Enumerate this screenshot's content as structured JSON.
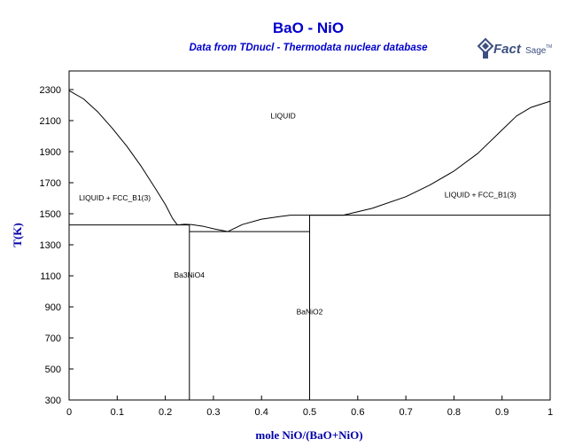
{
  "chart_data": {
    "type": "line",
    "title": "BaO - NiO",
    "subtitle": "Data from TDnucl - Thermodata nuclear database",
    "xlabel": "mole NiO/(BaO+NiO)",
    "ylabel": "T(K)",
    "xlim": [
      0,
      1
    ],
    "ylim": [
      300,
      2420
    ],
    "x_ticks": [
      0,
      0.1,
      0.2,
      0.3,
      0.4,
      0.5,
      0.6,
      0.7,
      0.8,
      0.9,
      1
    ],
    "x_tick_labels": [
      "0",
      "0.1",
      "0.2",
      "0.3",
      "0.4",
      "0.5",
      "0.6",
      "0.7",
      "0.8",
      "0.9",
      "1"
    ],
    "y_ticks": [
      300,
      500,
      700,
      900,
      1100,
      1300,
      1500,
      1700,
      1900,
      2100,
      2300
    ],
    "y_tick_labels": [
      "300",
      "500",
      "700",
      "900",
      "1100",
      "1300",
      "1500",
      "1700",
      "1900",
      "2100",
      "2300"
    ],
    "grid": false,
    "line_color": "#000000",
    "series": [
      {
        "points": [
          [
            0,
            2293
          ],
          [
            0.03,
            2240
          ],
          [
            0.06,
            2155
          ],
          [
            0.09,
            2050
          ],
          [
            0.12,
            1935
          ],
          [
            0.15,
            1805
          ],
          [
            0.18,
            1660
          ],
          [
            0.2,
            1560
          ],
          [
            0.215,
            1470
          ],
          [
            0.225,
            1428
          ]
        ]
      },
      {
        "points": [
          [
            0.225,
            1428
          ],
          [
            0.24,
            1432
          ],
          [
            0.255,
            1430
          ],
          [
            0.28,
            1418
          ],
          [
            0.305,
            1400
          ],
          [
            0.33,
            1385
          ]
        ]
      },
      {
        "points": [
          [
            0.33,
            1385
          ],
          [
            0.36,
            1430
          ],
          [
            0.4,
            1465
          ],
          [
            0.44,
            1483
          ],
          [
            0.46,
            1491
          ],
          [
            0.5,
            1491
          ]
        ]
      },
      {
        "points": [
          [
            0.5,
            1491
          ],
          [
            0.57,
            1491
          ]
        ]
      },
      {
        "points": [
          [
            0.57,
            1491
          ],
          [
            0.63,
            1535
          ],
          [
            0.7,
            1610
          ],
          [
            0.75,
            1685
          ],
          [
            0.8,
            1775
          ],
          [
            0.85,
            1890
          ],
          [
            0.9,
            2040
          ],
          [
            0.93,
            2130
          ],
          [
            0.96,
            2185
          ],
          [
            1,
            2225
          ]
        ]
      },
      {
        "points": [
          [
            0,
            1428
          ],
          [
            0.25,
            1428
          ]
        ]
      },
      {
        "points": [
          [
            0.25,
            1385
          ],
          [
            0.5,
            1385
          ]
        ]
      },
      {
        "points": [
          [
            0.5,
            1491
          ],
          [
            1,
            1491
          ]
        ]
      },
      {
        "points": [
          [
            0.25,
            300
          ],
          [
            0.25,
            1430
          ]
        ]
      },
      {
        "points": [
          [
            0.5,
            300
          ],
          [
            0.5,
            1491
          ]
        ]
      }
    ],
    "annotations": [
      {
        "text": "LIQUID",
        "x": 0.445,
        "y": 2115
      },
      {
        "text": "LIQUID + FCC_B1(3)",
        "x": 0.095,
        "y": 1585
      },
      {
        "text": "LIQUID + FCC_B1(3)",
        "x": 0.855,
        "y": 1607
      },
      {
        "text": "Ba3NiO4",
        "x": 0.25,
        "y": 1090
      },
      {
        "text": "BaNiO2",
        "x": 0.5,
        "y": 852
      }
    ]
  },
  "logo": {
    "text": "FactSage",
    "tm": "TM"
  }
}
